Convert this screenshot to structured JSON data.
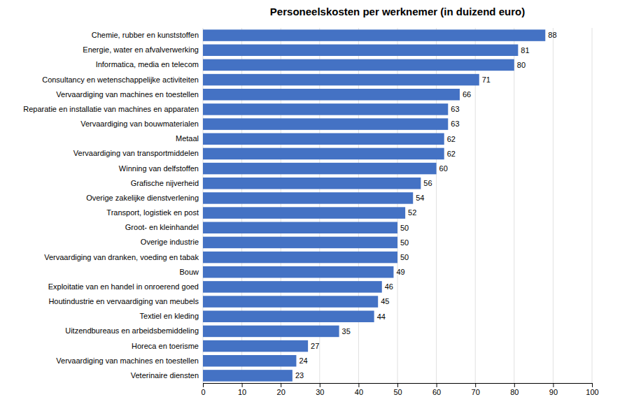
{
  "chart_data": {
    "type": "bar",
    "orientation": "horizontal",
    "title": "Personeelskosten per werknemer (in duizend euro)",
    "categories": [
      "Chemie, rubber en kunststoffen",
      "Energie, water en afvalverwerking",
      "Informatica, media en telecom",
      "Consultancy en wetenschappelijke activiteiten",
      "Vervaardiging van machines en toestellen",
      "Reparatie en installatie van machines en apparaten",
      "Vervaardiging van bouwmaterialen",
      "Metaal",
      "Vervaardiging van transportmiddelen",
      "Winning van delfstoffen",
      "Grafische nijverheid",
      "Overige zakelijke dienstverlening",
      "Transport, logistiek en post",
      "Groot- en kleinhandel",
      "Overige industrie",
      "Vervaardiging van dranken, voeding en tabak",
      "Bouw",
      "Exploitatie van en handel in onroerend goed",
      "Houtindustrie en vervaardiging van meubels",
      "Textiel en kleding",
      "Uitzendbureaus en arbeidsbemiddeling",
      "Horeca en toerisme",
      "Vervaardiging van machines en toestellen",
      "Veterinaire diensten"
    ],
    "values": [
      88,
      81,
      80,
      71,
      66,
      63,
      63,
      62,
      62,
      60,
      56,
      54,
      52,
      50,
      50,
      50,
      49,
      46,
      45,
      44,
      35,
      27,
      24,
      23
    ],
    "color": "#4472C4",
    "xlim": [
      0,
      100
    ],
    "xticks": [
      0,
      10,
      20,
      30,
      40,
      50,
      60,
      70,
      80,
      90,
      100
    ],
    "grid": true,
    "data_labels": true
  }
}
